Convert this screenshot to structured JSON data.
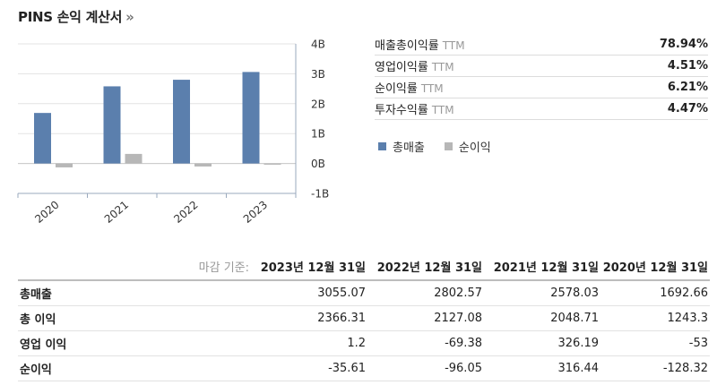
{
  "header": {
    "title": "PINS 손익 계산서",
    "more": "»"
  },
  "chart_data": {
    "type": "bar",
    "categories": [
      "2020",
      "2021",
      "2022",
      "2023"
    ],
    "series": [
      {
        "name": "총매출",
        "color": "#5b7fad",
        "values": [
          1.69,
          2.58,
          2.8,
          3.06
        ]
      },
      {
        "name": "순이익",
        "color": "#b7b7b7",
        "values": [
          -0.13,
          0.32,
          -0.1,
          -0.04
        ]
      }
    ],
    "ylim": [
      -1,
      4
    ],
    "yticks": [
      "4B",
      "3B",
      "2B",
      "1B",
      "0B",
      "-1B"
    ],
    "ytick_values": [
      4,
      3,
      2,
      1,
      0,
      -1
    ],
    "grid": true,
    "legend_position": "bottom-right"
  },
  "ratios": [
    {
      "label": "매출총이익률",
      "suffix": "TTM",
      "value": "78.94%"
    },
    {
      "label": "영업이익률",
      "suffix": "TTM",
      "value": "4.51%"
    },
    {
      "label": "순이익률",
      "suffix": "TTM",
      "value": "6.21%"
    },
    {
      "label": "투자수익률",
      "suffix": "TTM",
      "value": "4.47%"
    }
  ],
  "legend": [
    {
      "label": "총매출",
      "color": "#5b7fad"
    },
    {
      "label": "순이익",
      "color": "#b7b7b7"
    }
  ],
  "table": {
    "basis_label": "마감 기준:",
    "columns": [
      "2023년 12월 31일",
      "2022년 12월 31일",
      "2021년 12월 31일",
      "2020년 12월 31일"
    ],
    "rows": [
      {
        "label": "총매출",
        "values": [
          "3055.07",
          "2802.57",
          "2578.03",
          "1692.66"
        ]
      },
      {
        "label": "총 이익",
        "values": [
          "2366.31",
          "2127.08",
          "2048.71",
          "1243.3"
        ]
      },
      {
        "label": "영업 이익",
        "values": [
          "1.2",
          "-69.38",
          "326.19",
          "-53"
        ]
      },
      {
        "label": "순이익",
        "values": [
          "-35.61",
          "-96.05",
          "316.44",
          "-128.32"
        ]
      }
    ]
  }
}
